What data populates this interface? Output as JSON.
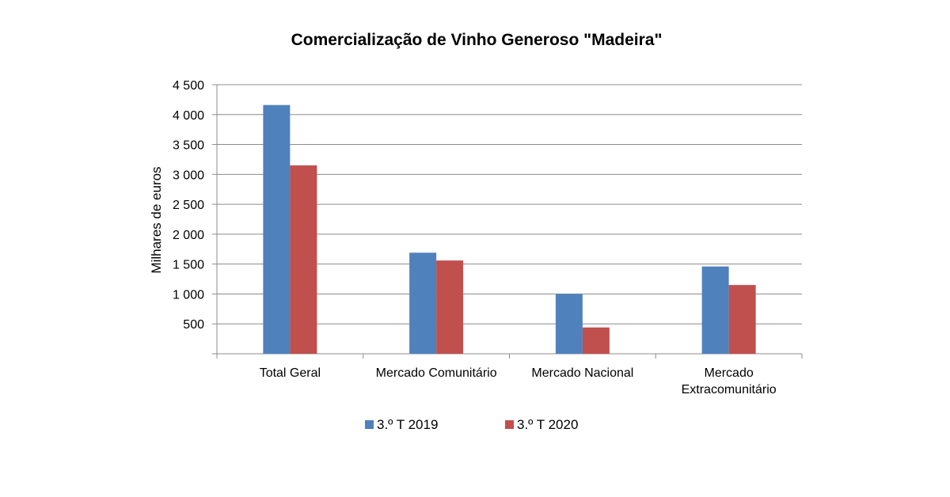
{
  "chart_data": {
    "type": "bar",
    "title": "Comercialização de Vinho Generoso \"Madeira\"",
    "xlabel": "",
    "ylabel": "Milhares de euros",
    "ylim": [
      0,
      4500
    ],
    "yticks": [
      500,
      1000,
      1500,
      2000,
      2500,
      3000,
      3500,
      4000,
      4500
    ],
    "ytick_labels": [
      "500",
      "1 000",
      "1 500",
      "2 000",
      "2 500",
      "3 000",
      "3 500",
      "4 000",
      "4 500"
    ],
    "categories": [
      [
        "Total Geral"
      ],
      [
        "Mercado Comunitário"
      ],
      [
        "Mercado Nacional"
      ],
      [
        "Mercado",
        "Extracomunitário"
      ]
    ],
    "series": [
      {
        "name": "3.º T 2019",
        "color": "#4F81BD",
        "values": [
          4160,
          1690,
          1000,
          1460
        ]
      },
      {
        "name": "3.º T 2020",
        "color": "#C0504D",
        "values": [
          3150,
          1560,
          440,
          1150
        ]
      }
    ],
    "grid": true,
    "legend": "bottom"
  }
}
